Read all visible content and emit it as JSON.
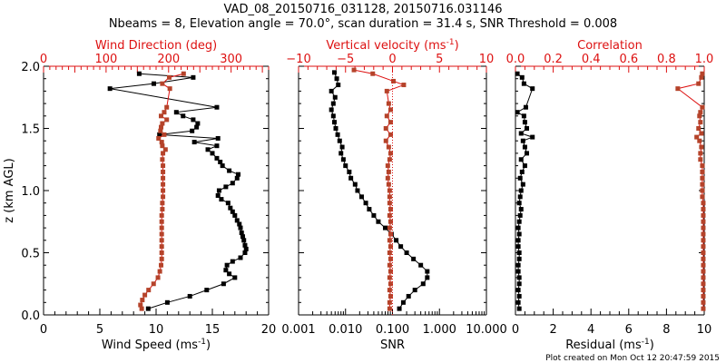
{
  "title_line1": "VAD_08_20150716_031128, 20150716.031146",
  "title_line2": "Nbeams = 8, Elevation angle = 70.0°, scan duration = 31.4 s, SNR Threshold = 0.008",
  "footer": "Plot created on Mon Oct 12 20:47:59 2015",
  "colors": {
    "black": "#000000",
    "red_axis": "#dd1111",
    "red_marker": "#b5432a"
  },
  "chart_data": [
    {
      "type": "line",
      "name": "wind",
      "ylabel": "z (km AGL)",
      "ylim": [
        0,
        2
      ],
      "yticks": [
        "0.0",
        "0.5",
        "1.0",
        "1.5",
        "2.0"
      ],
      "xlabel": "Wind Speed (ms",
      "xlabel_sup": "-1",
      "xlabel_end": ")",
      "xlim": [
        0,
        20
      ],
      "xticks": [
        "0",
        "5",
        "10",
        "15",
        "20"
      ],
      "top_label": "Wind Direction (deg)",
      "top_xlim": [
        0,
        360
      ],
      "top_xticks": [
        "0",
        "100",
        "200",
        "300"
      ],
      "series": [
        {
          "name": "Wind Speed",
          "axis": "bottom",
          "z": [
            0.05,
            0.1,
            0.15,
            0.2,
            0.25,
            0.3,
            0.33,
            0.36,
            0.4,
            0.43,
            0.46,
            0.5,
            0.53,
            0.56,
            0.6,
            0.63,
            0.66,
            0.7,
            0.73,
            0.76,
            0.8,
            0.83,
            0.86,
            0.9,
            0.93,
            0.96,
            1.0,
            1.03,
            1.06,
            1.1,
            1.13,
            1.16,
            1.2,
            1.23,
            1.26,
            1.3,
            1.33,
            1.36,
            1.39,
            1.42,
            1.45,
            1.48,
            1.51,
            1.54,
            1.57,
            1.6,
            1.63,
            1.67,
            1.82,
            1.86,
            1.91,
            1.94
          ],
          "values": [
            9.3,
            11,
            13,
            14.5,
            16,
            17,
            16.5,
            16.2,
            16.3,
            16.8,
            17.5,
            17.9,
            18,
            17.9,
            17.8,
            17.7,
            17.6,
            17.5,
            17.4,
            17.2,
            17.0,
            16.8,
            16.6,
            16.4,
            15.8,
            15.5,
            15.6,
            16.2,
            16.8,
            17.2,
            17.3,
            16.5,
            15.9,
            15.7,
            15.4,
            15.0,
            14.6,
            15.4,
            13.4,
            15.5,
            10.3,
            13.2,
            13.6,
            13.7,
            13.3,
            12.4,
            11.8,
            15.4,
            5.9,
            9.8,
            13.3,
            8.5
          ]
        },
        {
          "name": "Wind Direction",
          "axis": "top",
          "z": [
            0.05,
            0.08,
            0.12,
            0.16,
            0.2,
            0.25,
            0.3,
            0.35,
            0.4,
            0.45,
            0.5,
            0.55,
            0.6,
            0.65,
            0.7,
            0.75,
            0.8,
            0.85,
            0.9,
            0.95,
            1.0,
            1.05,
            1.1,
            1.15,
            1.2,
            1.25,
            1.3,
            1.33,
            1.36,
            1.39,
            1.42,
            1.45,
            1.48,
            1.51,
            1.54,
            1.57,
            1.6,
            1.63,
            1.67,
            1.82,
            1.86,
            1.91,
            1.94
          ],
          "values": [
            157,
            155,
            158,
            162,
            168,
            176,
            183,
            186,
            188,
            189,
            189,
            189,
            189,
            189,
            189,
            189,
            189,
            190,
            190,
            191,
            191,
            191,
            191,
            191,
            191,
            190,
            191,
            195,
            190,
            189,
            184,
            193,
            187,
            188,
            190,
            197,
            188,
            193,
            197,
            202,
            190,
            201,
            224
          ]
        }
      ]
    },
    {
      "type": "scatter",
      "name": "snr-vv",
      "ylim": [
        0,
        2
      ],
      "xlabel": "SNR",
      "xlim_log": [
        0.001,
        10
      ],
      "xticks": [
        "0.001",
        "0.010",
        "0.100",
        "1.000",
        "10.000"
      ],
      "top_label": "Vertical velocity (ms",
      "top_label_sup": "-1",
      "top_label_end": ")",
      "top_xlim": [
        -10,
        10
      ],
      "top_xticks": [
        "−10",
        "−5",
        "0",
        "5",
        "10"
      ],
      "series": [
        {
          "name": "SNR",
          "axis": "bottom",
          "z": [
            0.05,
            0.1,
            0.15,
            0.2,
            0.25,
            0.3,
            0.35,
            0.4,
            0.45,
            0.5,
            0.55,
            0.6,
            0.65,
            0.7,
            0.75,
            0.8,
            0.85,
            0.9,
            0.95,
            1.0,
            1.05,
            1.1,
            1.15,
            1.2,
            1.25,
            1.3,
            1.35,
            1.4,
            1.45,
            1.5,
            1.55,
            1.6,
            1.65,
            1.7,
            1.75,
            1.8,
            1.85,
            1.9,
            1.95
          ],
          "values": [
            0.14,
            0.17,
            0.22,
            0.3,
            0.45,
            0.55,
            0.55,
            0.4,
            0.28,
            0.2,
            0.15,
            0.12,
            0.095,
            0.07,
            0.05,
            0.04,
            0.032,
            0.027,
            0.022,
            0.018,
            0.016,
            0.013,
            0.012,
            0.01,
            0.009,
            0.008,
            0.0085,
            0.0075,
            0.0068,
            0.0062,
            0.0058,
            0.0055,
            0.005,
            0.0055,
            0.006,
            0.005,
            0.007,
            0.0065,
            0.0058
          ]
        },
        {
          "name": "Vertical velocity",
          "axis": "top",
          "z": [
            0.05,
            0.1,
            0.15,
            0.2,
            0.25,
            0.3,
            0.35,
            0.4,
            0.45,
            0.5,
            0.55,
            0.6,
            0.65,
            0.7,
            0.75,
            0.8,
            0.85,
            0.9,
            0.95,
            1.0,
            1.05,
            1.1,
            1.15,
            1.2,
            1.25,
            1.3,
            1.35,
            1.4,
            1.45,
            1.5,
            1.55,
            1.6,
            1.65,
            1.7,
            1.8,
            1.85,
            1.88,
            1.94,
            1.97
          ],
          "values": [
            -0.3,
            -0.3,
            -0.2,
            -0.3,
            -0.2,
            -0.3,
            -0.2,
            -0.3,
            -0.2,
            -0.3,
            -0.2,
            -0.3,
            -0.2,
            -0.3,
            -0.2,
            -0.3,
            -0.2,
            -0.3,
            -0.3,
            -0.3,
            -0.4,
            -0.5,
            -0.4,
            -0.5,
            -0.3,
            -0.2,
            -0.4,
            -0.7,
            -0.2,
            -0.7,
            -0.2,
            -0.6,
            -0.2,
            -0.4,
            -0.6,
            1.2,
            0.1,
            -2.1,
            -4.1
          ]
        }
      ]
    },
    {
      "type": "scatter",
      "name": "residual-corr",
      "ylim": [
        0,
        2
      ],
      "xlabel": "Residual (ms",
      "xlabel_sup": "-1",
      "xlabel_end": ")",
      "xlim": [
        0,
        10
      ],
      "xticks": [
        "0",
        "2",
        "4",
        "6",
        "8",
        "10"
      ],
      "top_label": "Correlation",
      "top_xlim": [
        0,
        1
      ],
      "top_xticks": [
        "0.0",
        "0.2",
        "0.4",
        "0.6",
        "0.8",
        "1.0"
      ],
      "series": [
        {
          "name": "Residual",
          "axis": "bottom",
          "z": [
            0.05,
            0.1,
            0.15,
            0.2,
            0.25,
            0.3,
            0.35,
            0.4,
            0.45,
            0.5,
            0.55,
            0.6,
            0.65,
            0.7,
            0.75,
            0.8,
            0.85,
            0.9,
            0.95,
            1.0,
            1.05,
            1.1,
            1.15,
            1.2,
            1.25,
            1.3,
            1.35,
            1.4,
            1.43,
            1.46,
            1.5,
            1.55,
            1.6,
            1.63,
            1.67,
            1.82,
            1.86,
            1.91,
            1.94
          ],
          "values": [
            0.2,
            0.15,
            0.2,
            0.15,
            0.2,
            0.2,
            0.15,
            0.15,
            0.2,
            0.2,
            0.15,
            0.15,
            0.2,
            0.15,
            0.2,
            0.25,
            0.3,
            0.2,
            0.25,
            0.3,
            0.4,
            0.25,
            0.35,
            0.5,
            0.3,
            0.6,
            0.5,
            0.4,
            0.9,
            0.3,
            0.6,
            0.5,
            0.45,
            0.1,
            0.55,
            0.9,
            0.45,
            0.35,
            0.1
          ]
        },
        {
          "name": "Correlation",
          "axis": "top",
          "z": [
            0.05,
            0.1,
            0.15,
            0.2,
            0.25,
            0.3,
            0.35,
            0.4,
            0.45,
            0.5,
            0.55,
            0.6,
            0.65,
            0.7,
            0.75,
            0.8,
            0.85,
            0.9,
            0.95,
            1.0,
            1.05,
            1.1,
            1.15,
            1.2,
            1.25,
            1.3,
            1.35,
            1.4,
            1.43,
            1.46,
            1.5,
            1.55,
            1.6,
            1.63,
            1.67,
            1.82,
            1.86,
            1.91,
            1.94
          ],
          "values": [
            0.995,
            0.995,
            0.995,
            0.995,
            0.995,
            0.995,
            0.995,
            0.995,
            0.995,
            0.995,
            0.995,
            0.995,
            0.995,
            0.995,
            0.995,
            0.995,
            0.995,
            0.995,
            0.99,
            0.99,
            0.99,
            0.99,
            0.99,
            0.99,
            0.98,
            0.98,
            0.985,
            0.975,
            0.96,
            0.985,
            0.97,
            0.98,
            0.975,
            0.98,
            0.99,
            0.86,
            0.97,
            0.985,
            0.99
          ]
        }
      ]
    }
  ]
}
